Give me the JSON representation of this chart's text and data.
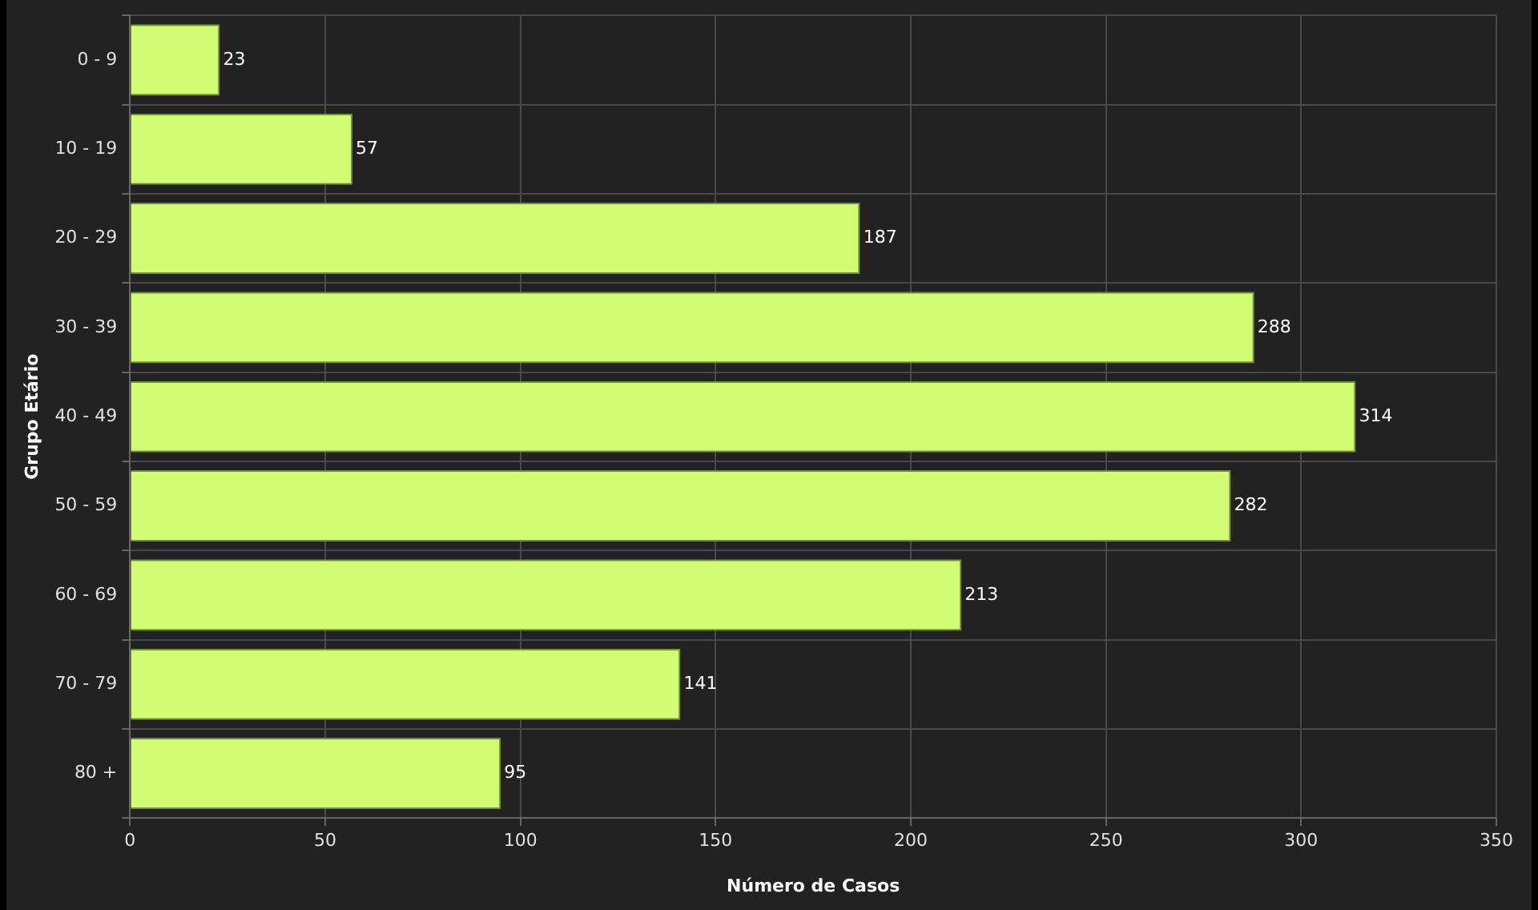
{
  "chart_data": {
    "type": "bar",
    "orientation": "horizontal",
    "xlabel": "Número de Casos",
    "ylabel": "Grupo Etário",
    "categories": [
      "0 - 9",
      "10 - 19",
      "20 - 29",
      "30 - 39",
      "40 - 49",
      "50 - 59",
      "60 - 69",
      "70 - 79",
      "80 +"
    ],
    "values": [
      23,
      57,
      187,
      288,
      314,
      282,
      213,
      141,
      95
    ],
    "color": "#d1fd75",
    "xlim": [
      0,
      350
    ],
    "xticks": [
      0,
      50,
      100,
      150,
      200,
      250,
      300,
      350
    ],
    "grid": true,
    "data_labels": true,
    "legend": false
  }
}
